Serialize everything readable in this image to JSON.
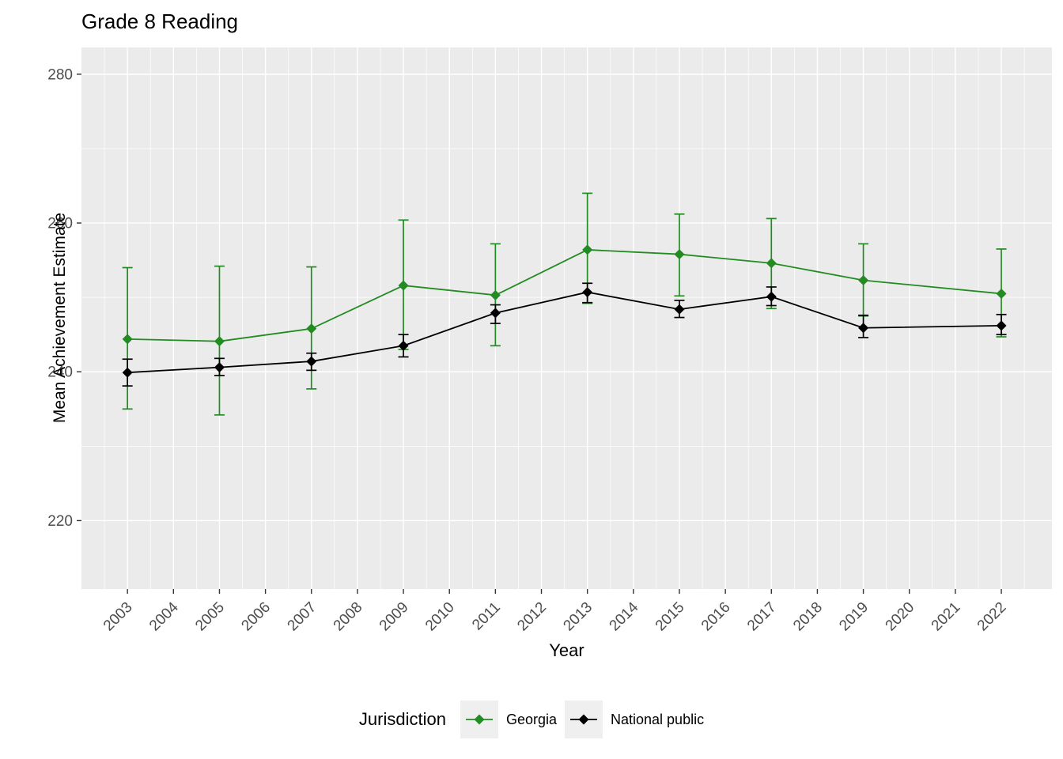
{
  "chart_data": {
    "type": "line",
    "title": "Grade 8 Reading",
    "xlabel": "Year",
    "ylabel": "Mean Achievement Estimate",
    "legend_title": "Jurisdiction",
    "legend_position": "bottom",
    "point_shape": "diamond",
    "error_bars": true,
    "grid": true,
    "panel_bg": "#EBEBEB",
    "grid_color": "#FFFFFF",
    "tick_color": "#333333",
    "tick_label_color": "#4D4D4D",
    "xlim": [
      2002.0,
      2023.1
    ],
    "ylim": [
      210.8,
      283.6
    ],
    "x_ticks": [
      2003,
      2004,
      2005,
      2006,
      2007,
      2008,
      2009,
      2010,
      2011,
      2012,
      2013,
      2014,
      2015,
      2016,
      2017,
      2018,
      2019,
      2020,
      2021,
      2022
    ],
    "y_ticks": [
      220,
      240,
      260,
      280
    ],
    "y_minor_ticks": [
      230,
      250,
      270
    ],
    "x": [
      2003,
      2005,
      2007,
      2009,
      2011,
      2013,
      2015,
      2017,
      2019,
      2022
    ],
    "series": [
      {
        "name": "Georgia",
        "color": "#228B22",
        "values": [
          244.4,
          244.1,
          245.8,
          251.6,
          250.3,
          256.4,
          255.8,
          254.6,
          252.3,
          250.5
        ],
        "ci_low": [
          235.0,
          234.2,
          237.7,
          243.0,
          243.5,
          249.2,
          250.2,
          248.5,
          247.5,
          244.7
        ],
        "ci_high": [
          254.0,
          254.2,
          254.1,
          260.4,
          257.2,
          264.0,
          261.2,
          260.6,
          257.2,
          256.5
        ]
      },
      {
        "name": "National public",
        "color": "#000000",
        "values": [
          239.9,
          240.6,
          241.4,
          243.5,
          247.9,
          250.7,
          248.4,
          250.1,
          245.9,
          246.2
        ],
        "ci_low": [
          238.1,
          239.5,
          240.2,
          242.0,
          246.5,
          249.3,
          247.3,
          248.9,
          244.6,
          245.0
        ],
        "ci_high": [
          241.7,
          241.8,
          242.5,
          245.0,
          249.0,
          251.9,
          249.6,
          251.4,
          247.6,
          247.7
        ]
      }
    ]
  }
}
